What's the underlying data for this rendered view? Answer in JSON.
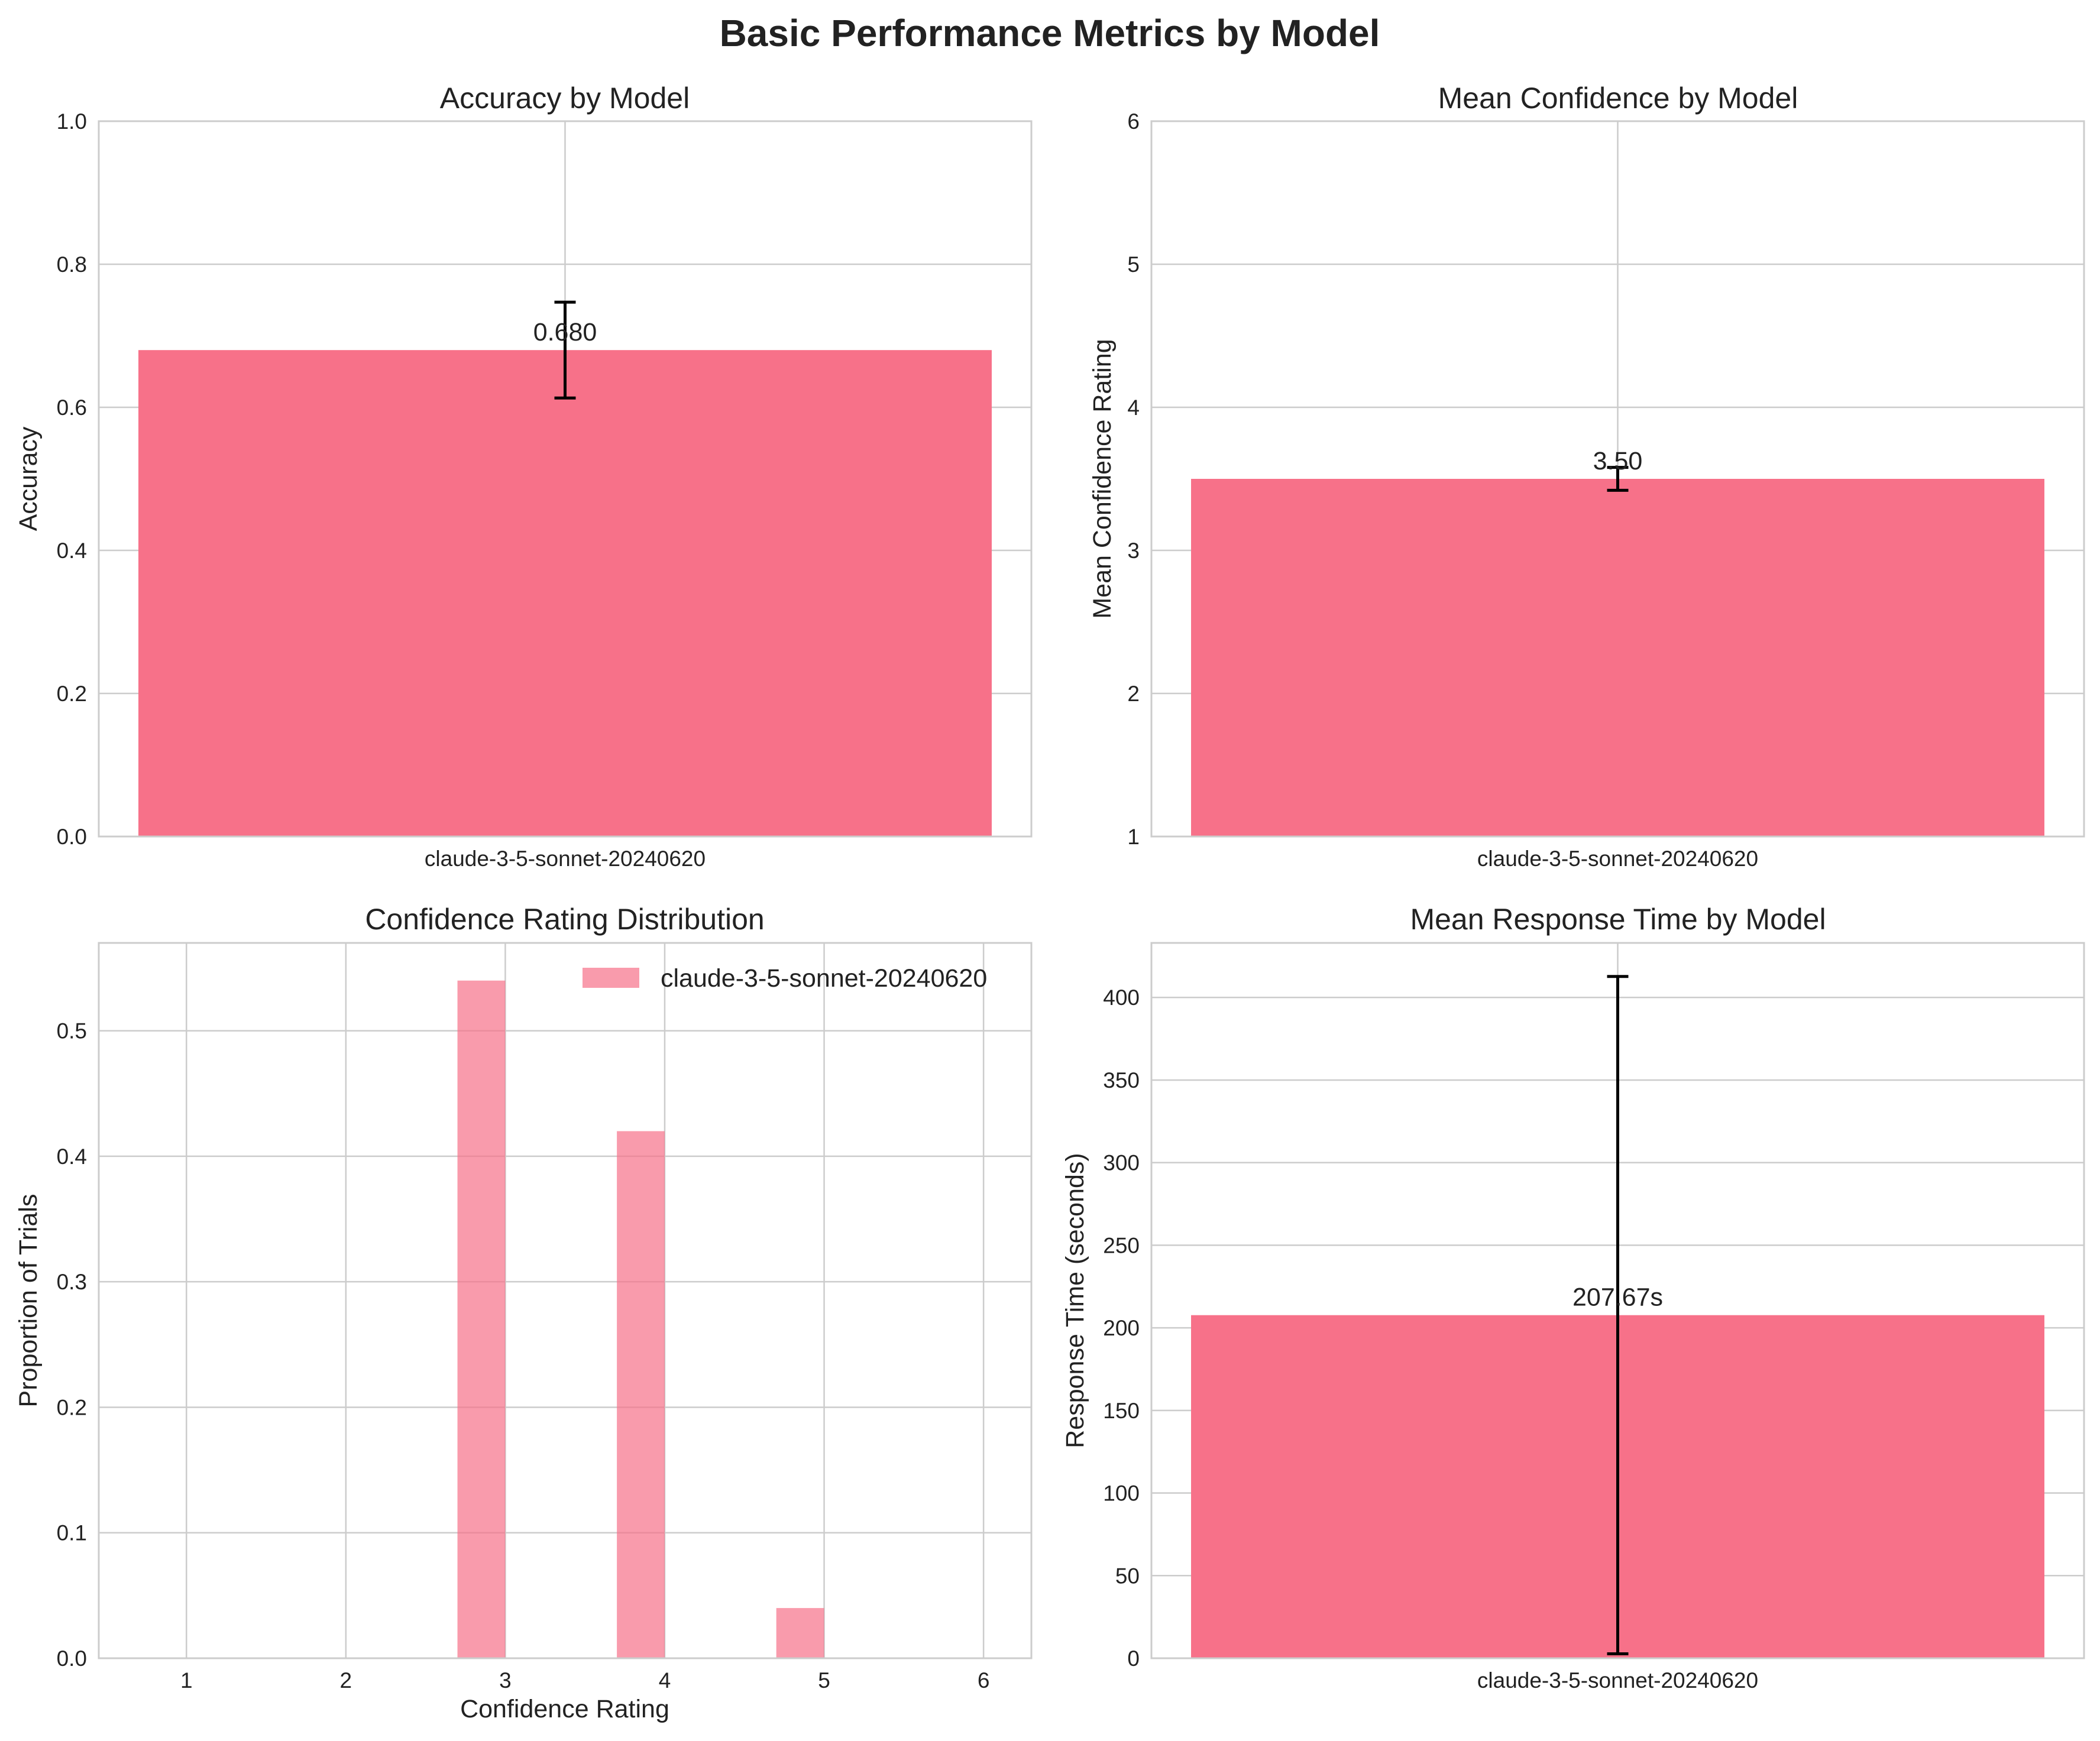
{
  "figure": {
    "title": "Basic Performance Metrics by Model",
    "colors": {
      "bar": "#f77189",
      "hist": "#f77189",
      "grid": "#cccccc",
      "errorbar": "#000000"
    }
  },
  "chart_data": [
    {
      "id": "accuracy",
      "type": "bar",
      "title": "Accuracy by Model",
      "xlabel": "",
      "ylabel": "Accuracy",
      "categories": [
        "claude-3-5-sonnet-20240620"
      ],
      "values": [
        0.68
      ],
      "errors": [
        0.067
      ],
      "data_labels": [
        "0.680"
      ],
      "ylim": [
        0,
        1
      ],
      "yticks": [
        0,
        0.2,
        0.4,
        0.6,
        0.8,
        1.0
      ],
      "ytick_labels": [
        "0.0",
        "0.2",
        "0.4",
        "0.6",
        "0.8",
        "1.0"
      ],
      "grid": true
    },
    {
      "id": "confidence",
      "type": "bar",
      "title": "Mean Confidence by Model",
      "xlabel": "",
      "ylabel": "Mean Confidence Rating",
      "categories": [
        "claude-3-5-sonnet-20240620"
      ],
      "values": [
        3.5
      ],
      "errors": [
        0.08
      ],
      "data_labels": [
        "3.50"
      ],
      "ylim": [
        1,
        6
      ],
      "yticks": [
        1,
        2,
        3,
        4,
        5,
        6
      ],
      "ytick_labels": [
        "1",
        "2",
        "3",
        "4",
        "5",
        "6"
      ],
      "grid": true
    },
    {
      "id": "distribution",
      "type": "bar",
      "title": "Confidence Rating Distribution",
      "xlabel": "Confidence Rating",
      "ylabel": "Proportion of Trials",
      "series": [
        {
          "name": "claude-3-5-sonnet-20240620",
          "x": [
            1,
            2,
            3,
            4,
            5,
            6
          ],
          "values": [
            0,
            0,
            0.54,
            0.42,
            0.04,
            0
          ]
        }
      ],
      "bar_width": 0.3,
      "xlim": [
        0.45,
        6.3
      ],
      "ylim": [
        0,
        0.57
      ],
      "xticks": [
        1,
        2,
        3,
        4,
        5,
        6
      ],
      "xtick_labels": [
        "1",
        "2",
        "3",
        "4",
        "5",
        "6"
      ],
      "yticks": [
        0,
        0.1,
        0.2,
        0.3,
        0.4,
        0.5
      ],
      "ytick_labels": [
        "0.0",
        "0.1",
        "0.2",
        "0.3",
        "0.4",
        "0.5"
      ],
      "legend": "top-right",
      "grid": true
    },
    {
      "id": "response",
      "type": "bar",
      "title": "Mean Response Time by Model",
      "xlabel": "",
      "ylabel": "Response Time (seconds)",
      "categories": [
        "claude-3-5-sonnet-20240620"
      ],
      "values": [
        207.67
      ],
      "errors": [
        205
      ],
      "data_labels": [
        "207.67s"
      ],
      "ylim": [
        0,
        433
      ],
      "yticks": [
        0,
        50,
        100,
        150,
        200,
        250,
        300,
        350,
        400
      ],
      "ytick_labels": [
        "0",
        "50",
        "100",
        "150",
        "200",
        "250",
        "300",
        "350",
        "400"
      ],
      "grid": true
    }
  ]
}
